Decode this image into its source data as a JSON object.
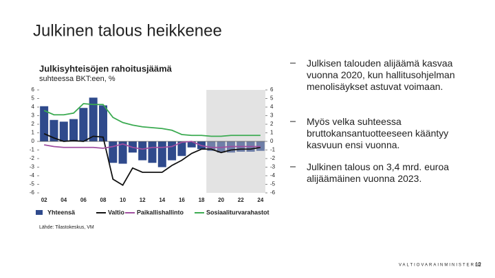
{
  "slide": {
    "title": "Julkinen talous heikkenee",
    "bullets": [
      "Julkisen talouden alijäämä kasvaa vuonna 2020, kun hallitusohjelman menolisäykset astuvat voimaan.",
      "Myös velka suhteessa bruttokansantuotteeseen kääntyy kasvuun ensi vuonna.",
      "Julkinen talous on 3,4 mrd. euroa alijäämäinen vuonna 2023."
    ],
    "footer": "VALTIOVARAINMINISTERIÖ",
    "page": 12
  },
  "chart_data": {
    "type": "bar",
    "title": "Julkisyhteisöjen rahoitusjäämä",
    "subtitle": "suhteessa BKT:een, %",
    "source": "Lähde: Tilastokeskus, VM",
    "categories": [
      "02",
      null,
      "04",
      null,
      "06",
      null,
      "08",
      null,
      "10",
      null,
      "12",
      null,
      "14",
      null,
      "16",
      null,
      "18",
      null,
      "20",
      null,
      "22",
      null,
      "24"
    ],
    "series": [
      {
        "name": "Yhteensä",
        "type": "bar",
        "color": "#2f4a8c",
        "forecast_color": "#6f7fa8",
        "values": [
          4.1,
          2.5,
          2.3,
          2.6,
          3.9,
          5.1,
          4.2,
          -2.5,
          -2.6,
          -1.3,
          -2.2,
          -2.5,
          -3.0,
          -2.2,
          -1.7,
          -0.7,
          -0.9,
          -1.1,
          -1.3,
          -1.3,
          -1.2,
          -1.2,
          -1.1
        ]
      },
      {
        "name": "Valtio",
        "type": "line",
        "color": "#111111",
        "values": [
          0.9,
          0.4,
          0.0,
          0.1,
          0.0,
          0.6,
          0.5,
          -4.4,
          -5.1,
          -3.1,
          -3.6,
          -3.6,
          -3.6,
          -2.8,
          -2.2,
          -1.4,
          -0.9,
          -0.9,
          -1.3,
          -1.0,
          -0.9,
          -0.9,
          -0.7
        ]
      },
      {
        "name": "Paikallishallinto",
        "type": "line",
        "color": "#a04fa0",
        "values": [
          -0.4,
          -0.6,
          -0.7,
          -0.7,
          -0.7,
          -0.7,
          -0.8,
          -0.6,
          -0.3,
          -0.7,
          -0.9,
          -0.7,
          -0.7,
          -0.6,
          -0.1,
          0.0,
          -0.5,
          -0.7,
          -0.7,
          -0.6,
          -0.6,
          -0.6,
          -0.6
        ]
      },
      {
        "name": "Sosiaaliturvarahastot",
        "type": "line",
        "color": "#3aaa50",
        "values": [
          3.6,
          3.1,
          3.1,
          3.3,
          4.4,
          4.3,
          4.3,
          2.8,
          2.2,
          1.9,
          1.7,
          1.6,
          1.5,
          1.3,
          0.8,
          0.7,
          0.7,
          0.6,
          0.6,
          0.7,
          0.7,
          0.7,
          0.7
        ]
      }
    ],
    "ylim": [
      -6,
      6
    ],
    "yticks": [
      -6,
      -5,
      -4,
      -3,
      -2,
      -1,
      0,
      1,
      2,
      3,
      4,
      5,
      6
    ],
    "y2lim": [
      -6,
      6
    ],
    "y2ticks": [
      -6,
      -5,
      -4,
      -3,
      -2,
      -1,
      0,
      1,
      2,
      3,
      4,
      5,
      6
    ]
  }
}
